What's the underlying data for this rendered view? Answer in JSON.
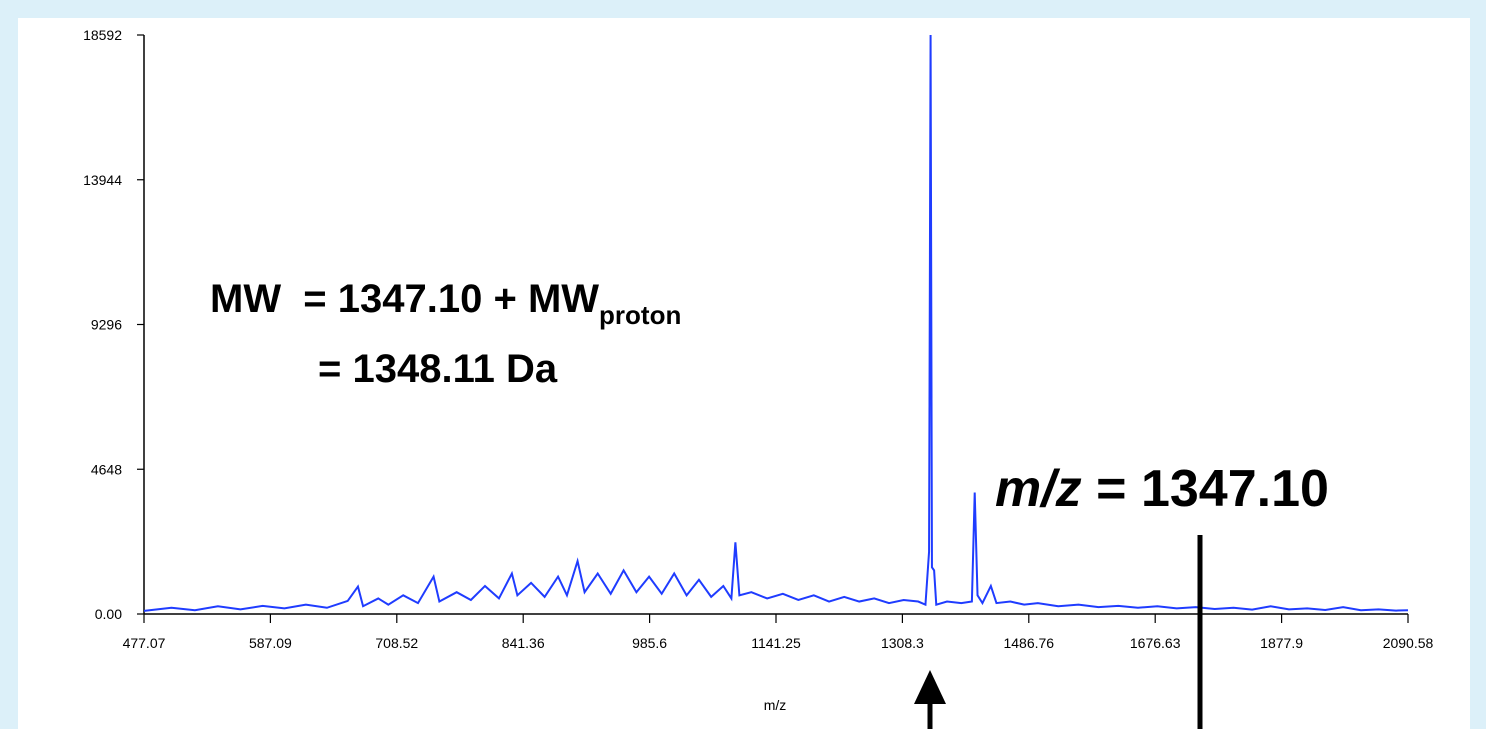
{
  "chart_data": {
    "type": "line",
    "x_scale": "sqrt",
    "xlabel": "m/z",
    "color": "#1f3cff",
    "x": [
      477.07,
      500,
      520,
      540,
      560,
      580,
      600,
      620,
      640,
      660,
      670,
      675,
      690,
      700,
      715,
      730,
      746,
      752,
      770,
      785,
      800,
      815,
      829,
      835,
      850,
      865,
      880,
      890,
      902,
      910,
      925,
      940,
      955,
      970,
      985,
      1000,
      1015,
      1030,
      1045,
      1060,
      1075,
      1085,
      1090,
      1095,
      1110,
      1130,
      1150,
      1170,
      1190,
      1210,
      1230,
      1250,
      1270,
      1290,
      1310,
      1330,
      1340,
      1345,
      1347.1,
      1349,
      1352,
      1355,
      1370,
      1390,
      1405,
      1409,
      1413,
      1420,
      1432,
      1440,
      1460,
      1480,
      1500,
      1530,
      1560,
      1590,
      1620,
      1650,
      1680,
      1710,
      1740,
      1770,
      1800,
      1830,
      1860,
      1890,
      1920,
      1950,
      1980,
      2010,
      2040,
      2070,
      2090.58
    ],
    "values": [
      100,
      200,
      120,
      250,
      150,
      260,
      180,
      300,
      200,
      420,
      880,
      250,
      500,
      300,
      600,
      350,
      1200,
      400,
      700,
      450,
      900,
      500,
      1300,
      600,
      1000,
      550,
      1200,
      600,
      1700,
      700,
      1300,
      650,
      1400,
      700,
      1200,
      650,
      1300,
      600,
      1100,
      550,
      900,
      500,
      2300,
      600,
      700,
      500,
      650,
      450,
      600,
      400,
      550,
      400,
      500,
      350,
      450,
      400,
      300,
      2000,
      18592,
      1500,
      1400,
      300,
      400,
      350,
      400,
      3900,
      600,
      350,
      900,
      350,
      400,
      300,
      350,
      250,
      300,
      220,
      260,
      200,
      250,
      180,
      220,
      160,
      200,
      140,
      250,
      150,
      180,
      130,
      220,
      120,
      150,
      110,
      120
    ],
    "xlim": [
      477.07,
      2090.58
    ],
    "xticks": [
      477.07,
      587.09,
      708.52,
      841.36,
      985.6,
      1141.25,
      1308.3,
      1486.76,
      1676.63,
      1877.9,
      2090.58
    ],
    "ylim": [
      0,
      18592
    ],
    "yticks": [
      {
        "value": 0,
        "label": "0.00"
      },
      4648,
      9296,
      13944,
      18592
    ],
    "annotations": [
      {
        "text": "MW  = 1347.10 + MW",
        "subscript": "proton"
      },
      {
        "text": "= 1348.11 Da"
      },
      {
        "italic": "m/z",
        "text": " = 1347.10"
      }
    ]
  }
}
